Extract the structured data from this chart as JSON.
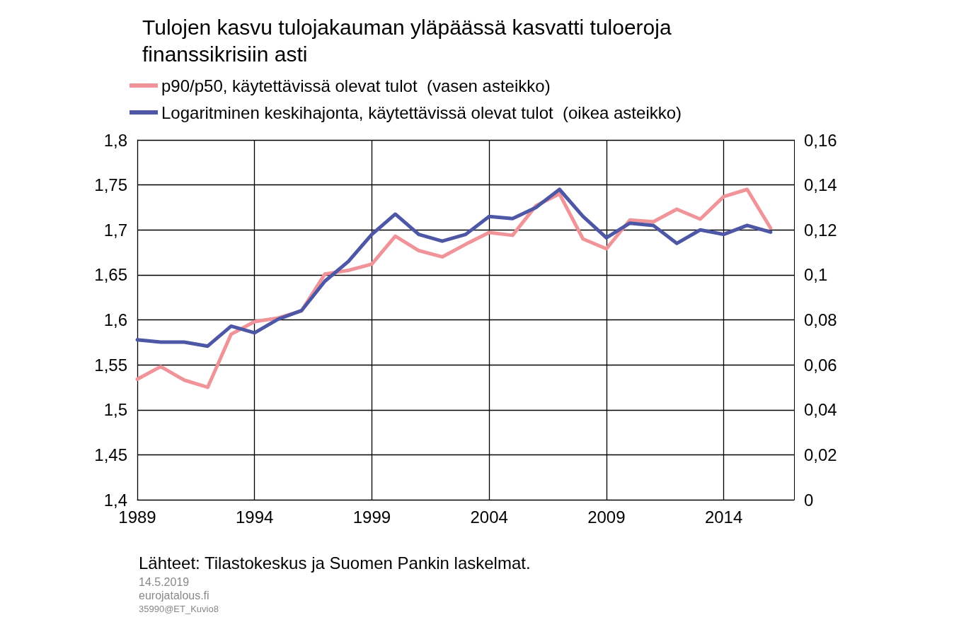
{
  "chart_data": {
    "type": "line",
    "title": "Tulojen kasvu tulojakauman yläpäässä kasvatti tuloeroja\nfinanssikrisiin asti",
    "x": [
      1989,
      1990,
      1991,
      1992,
      1993,
      1994,
      1995,
      1996,
      1997,
      1998,
      1999,
      2000,
      2001,
      2002,
      2003,
      2004,
      2005,
      2006,
      2007,
      2008,
      2009,
      2010,
      2011,
      2012,
      2013,
      2014,
      2015,
      2016
    ],
    "series": [
      {
        "name": "p90/p50, käytettävissä olevat tulot  (vasen asteikko)",
        "color": "#f0949a",
        "values": [
          1.534,
          1.548,
          1.533,
          1.525,
          1.584,
          1.598,
          1.602,
          1.61,
          1.651,
          1.655,
          1.662,
          1.693,
          1.677,
          1.67,
          1.684,
          1.697,
          1.694,
          1.727,
          1.74,
          1.69,
          1.679,
          1.711,
          1.709,
          1.723,
          1.712,
          1.737,
          1.745,
          1.702
        ]
      },
      {
        "name": "Logaritminen keskihajonta, käytettävissä olevat tulot  (oikea asteikko)",
        "color": "#4e57a6",
        "axis": "y2",
        "values": [
          0.0711,
          0.0701,
          0.0701,
          0.0683,
          0.0772,
          0.0742,
          0.0803,
          0.0841,
          0.0972,
          0.106,
          0.118,
          0.127,
          0.118,
          0.115,
          0.118,
          0.126,
          0.125,
          0.13,
          0.138,
          0.126,
          0.1165,
          0.123,
          0.122,
          0.114,
          0.12,
          0.118,
          0.122,
          0.119
        ]
      }
    ],
    "xlim": [
      1989,
      2017
    ],
    "xticks": [
      1989,
      1994,
      1999,
      2004,
      2009,
      2014
    ],
    "ylim": [
      1.4,
      1.8
    ],
    "yticks": [
      {
        "value": 1.4,
        "label": "1,4"
      },
      {
        "value": 1.45,
        "label": "1,45"
      },
      {
        "value": 1.5,
        "label": "1,5"
      },
      {
        "value": 1.55,
        "label": "1,55"
      },
      {
        "value": 1.6,
        "label": "1,6"
      },
      {
        "value": 1.65,
        "label": "1,65"
      },
      {
        "value": 1.7,
        "label": "1,7"
      },
      {
        "value": 1.75,
        "label": "1,75"
      },
      {
        "value": 1.8,
        "label": "1,8"
      }
    ],
    "y2lim": [
      0,
      0.16
    ],
    "y2ticks": [
      0,
      {
        "value": 0.02,
        "label": "0,02"
      },
      {
        "value": 0.04,
        "label": "0,04"
      },
      {
        "value": 0.06,
        "label": "0,06"
      },
      {
        "value": 0.08,
        "label": "0,08"
      },
      {
        "value": 0.1,
        "label": "0,1"
      },
      {
        "value": 0.12,
        "label": "0,12"
      },
      {
        "value": 0.14,
        "label": "0,14"
      },
      {
        "value": 0.16,
        "label": "0,16"
      }
    ],
    "grid": true,
    "legend": "top",
    "marker": "none",
    "line_style": "solid",
    "annotations": [
      "Lähteet: Tilastokeskus ja Suomen Pankin laskelmat.",
      "14.5.2019",
      "eurojatalous.fi",
      "35990@ET_Kuvio8"
    ]
  }
}
